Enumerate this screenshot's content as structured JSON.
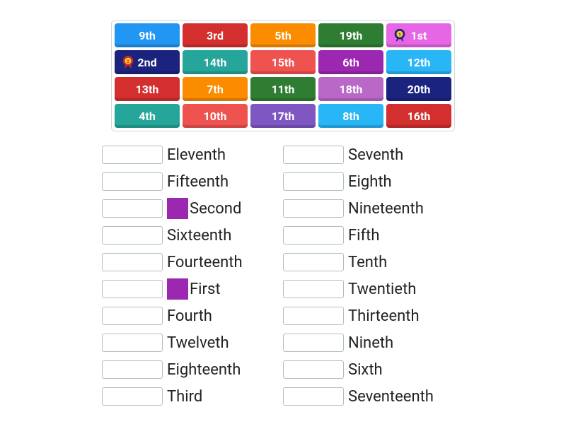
{
  "tiles": [
    {
      "label": "9th",
      "color": "#2196f3",
      "badge": null
    },
    {
      "label": "3rd",
      "color": "#d32f2f",
      "badge": null
    },
    {
      "label": "5th",
      "color": "#fb8c00",
      "badge": null
    },
    {
      "label": "19th",
      "color": "#2e7d32",
      "badge": null
    },
    {
      "label": "1st",
      "color": "#e666e6",
      "badge": "first"
    },
    {
      "label": "2nd",
      "color": "#1a237e",
      "badge": "second"
    },
    {
      "label": "14th",
      "color": "#26a69a",
      "badge": null
    },
    {
      "label": "15th",
      "color": "#ef5350",
      "badge": null
    },
    {
      "label": "6th",
      "color": "#9c27b0",
      "badge": null
    },
    {
      "label": "12th",
      "color": "#29b6f6",
      "badge": null
    },
    {
      "label": "13th",
      "color": "#d32f2f",
      "badge": null
    },
    {
      "label": "7th",
      "color": "#fb8c00",
      "badge": null
    },
    {
      "label": "11th",
      "color": "#2e7d32",
      "badge": null
    },
    {
      "label": "18th",
      "color": "#ba68c8",
      "badge": null
    },
    {
      "label": "20th",
      "color": "#1a237e",
      "badge": null
    },
    {
      "label": "4th",
      "color": "#26a69a",
      "badge": null
    },
    {
      "label": "10th",
      "color": "#ef5350",
      "badge": null
    },
    {
      "label": "17th",
      "color": "#7e57c2",
      "badge": null
    },
    {
      "label": "8th",
      "color": "#29b6f6",
      "badge": null
    },
    {
      "label": "16th",
      "color": "#d32f2f",
      "badge": null
    }
  ],
  "answers_left": [
    {
      "label": "Eleventh",
      "icon": false
    },
    {
      "label": "Fifteenth",
      "icon": false
    },
    {
      "label": "Second",
      "icon": true
    },
    {
      "label": "Sixteenth",
      "icon": false
    },
    {
      "label": "Fourteenth",
      "icon": false
    },
    {
      "label": "First",
      "icon": true
    },
    {
      "label": "Fourth",
      "icon": false
    },
    {
      "label": "Twelveth",
      "icon": false
    },
    {
      "label": "Eighteenth",
      "icon": false
    },
    {
      "label": "Third",
      "icon": false
    }
  ],
  "answers_right": [
    {
      "label": "Seventh",
      "icon": false
    },
    {
      "label": "Eighth",
      "icon": false
    },
    {
      "label": "Nineteenth",
      "icon": false
    },
    {
      "label": "Fifth",
      "icon": false
    },
    {
      "label": "Tenth",
      "icon": false
    },
    {
      "label": "Twentieth",
      "icon": false
    },
    {
      "label": "Thirteenth",
      "icon": false
    },
    {
      "label": "Nineth",
      "icon": false
    },
    {
      "label": "Sixth",
      "icon": false
    },
    {
      "label": "Seventeenth",
      "icon": false
    }
  ],
  "style": {
    "tile_font_size": 16,
    "word_font_size": 22,
    "icon_color": "#9c27b0",
    "tray_border": "#cfd8dc",
    "dropzone_border": "#b0bec5"
  }
}
